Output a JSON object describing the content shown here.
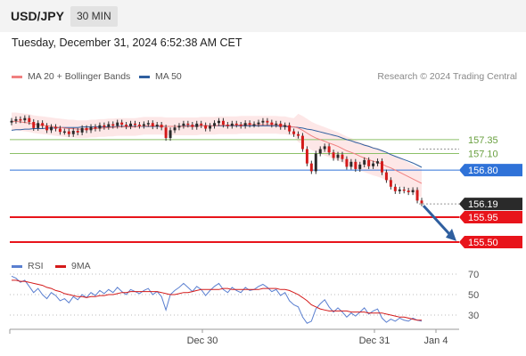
{
  "header": {
    "pair": "USD/JPY",
    "timeframe": "30 MIN",
    "datetime": "Tuesday, December 31, 2024 6:52:38 AM CET"
  },
  "legend": {
    "ma20": "MA 20 + Bollinger Bands",
    "ma50": "MA 50",
    "credit": "Research © 2024 Trading Central"
  },
  "rsi_legend": {
    "rsi": "RSI",
    "ma": "9MA"
  },
  "colors": {
    "ma20": "#f08080",
    "ma50": "#2f5f9f",
    "band": "#fde3e3",
    "up": "#2a2a2a",
    "down": "#d41a1a",
    "resistance": "#8cc068",
    "pivot": "#2f72d8",
    "support": "#e8141b",
    "last": "#2a2a2a",
    "arrow": "#2f5f9f",
    "rsi": "#5a7fd0",
    "rsi_ma": "#d41a1a"
  },
  "chart_data": [
    {
      "type": "candlestick",
      "x_ticks": [
        "Dec 30",
        "Dec 31",
        "Jan 4"
      ],
      "y_range": [
        155.3,
        157.95
      ],
      "levels": [
        {
          "label": "157.35",
          "value": 157.35,
          "kind": "resistance"
        },
        {
          "label": "157.10",
          "value": 157.1,
          "kind": "resistance"
        },
        {
          "label": "156.80",
          "value": 156.8,
          "kind": "pivot"
        },
        {
          "label": "156.19",
          "value": 156.19,
          "kind": "last"
        },
        {
          "label": "155.95",
          "value": 155.95,
          "kind": "support"
        },
        {
          "label": "155.50",
          "value": 155.5,
          "kind": "support"
        }
      ],
      "close": [
        157.69,
        157.72,
        157.7,
        157.74,
        157.67,
        157.56,
        157.65,
        157.6,
        157.52,
        157.58,
        157.55,
        157.49,
        157.5,
        157.45,
        157.51,
        157.48,
        157.56,
        157.52,
        157.58,
        157.55,
        157.61,
        157.58,
        157.63,
        157.6,
        157.66,
        157.62,
        157.59,
        157.64,
        157.62,
        157.6,
        157.63,
        157.65,
        157.59,
        157.62,
        157.57,
        157.38,
        157.52,
        157.57,
        157.6,
        157.64,
        157.62,
        157.58,
        157.64,
        157.61,
        157.55,
        157.6,
        157.65,
        157.69,
        157.62,
        157.6,
        157.64,
        157.62,
        157.6,
        157.65,
        157.62,
        157.63,
        157.66,
        157.69,
        157.66,
        157.62,
        157.64,
        157.58,
        157.61,
        157.5,
        157.45,
        157.42,
        157.18,
        156.92,
        156.78,
        157.1,
        157.18,
        157.23,
        157.12,
        157.02,
        157.08,
        157.0,
        156.86,
        156.95,
        156.82,
        156.9,
        156.98,
        156.87,
        156.92,
        156.96,
        156.76,
        156.62,
        156.5,
        156.42,
        156.45,
        156.43,
        156.4,
        156.44,
        156.25,
        156.2
      ],
      "ma20": [
        157.68,
        157.68,
        157.67,
        157.66,
        157.65,
        157.63,
        157.62,
        157.61,
        157.6,
        157.59,
        157.58,
        157.57,
        157.56,
        157.55,
        157.55,
        157.54,
        157.54,
        157.54,
        157.55,
        157.55,
        157.56,
        157.56,
        157.57,
        157.57,
        157.58,
        157.58,
        157.58,
        157.58,
        157.58,
        157.59,
        157.6,
        157.6,
        157.6,
        157.6,
        157.6,
        157.59,
        157.59,
        157.59,
        157.59,
        157.59,
        157.59,
        157.59,
        157.59,
        157.6,
        157.6,
        157.6,
        157.6,
        157.61,
        157.61,
        157.61,
        157.61,
        157.61,
        157.62,
        157.62,
        157.62,
        157.62,
        157.62,
        157.62,
        157.62,
        157.62,
        157.62,
        157.61,
        157.61,
        157.59,
        157.58,
        157.56,
        157.52,
        157.47,
        157.42,
        157.38,
        157.35,
        157.32,
        157.29,
        157.26,
        157.23,
        157.19,
        157.15,
        157.12,
        157.09,
        157.05,
        157.02,
        156.99,
        156.96,
        156.94,
        156.91,
        156.87,
        156.84,
        156.8,
        156.76,
        156.72,
        156.68,
        156.64,
        156.6,
        156.56
      ],
      "ma50": [
        157.52,
        157.53,
        157.53,
        157.54,
        157.54,
        157.55,
        157.55,
        157.55,
        157.56,
        157.56,
        157.56,
        157.57,
        157.57,
        157.57,
        157.57,
        157.57,
        157.58,
        157.58,
        157.58,
        157.58,
        157.58,
        157.58,
        157.58,
        157.58,
        157.59,
        157.59,
        157.59,
        157.59,
        157.59,
        157.59,
        157.59,
        157.59,
        157.59,
        157.59,
        157.59,
        157.59,
        157.59,
        157.59,
        157.59,
        157.6,
        157.6,
        157.6,
        157.6,
        157.6,
        157.6,
        157.6,
        157.6,
        157.6,
        157.6,
        157.6,
        157.6,
        157.6,
        157.6,
        157.6,
        157.6,
        157.6,
        157.6,
        157.6,
        157.6,
        157.6,
        157.6,
        157.59,
        157.59,
        157.58,
        157.58,
        157.57,
        157.56,
        157.54,
        157.53,
        157.51,
        157.49,
        157.47,
        157.45,
        157.43,
        157.41,
        157.38,
        157.35,
        157.33,
        157.3,
        157.28,
        157.25,
        157.23,
        157.2,
        157.18,
        157.15,
        157.12,
        157.08,
        157.05,
        157.02,
        156.99,
        156.96,
        156.93,
        156.89,
        156.85
      ],
      "band_width": 0.16,
      "projection": {
        "from": 156.19,
        "to": 155.55
      }
    },
    {
      "type": "line",
      "name_rsi": "RSI",
      "name_ma": "9MA",
      "y_ticks": [
        70,
        50,
        30
      ],
      "y_range": [
        20,
        80
      ],
      "rsi": [
        68,
        66,
        62,
        64,
        58,
        52,
        56,
        50,
        46,
        52,
        49,
        44,
        46,
        42,
        48,
        45,
        50,
        47,
        52,
        49,
        54,
        51,
        55,
        52,
        57,
        53,
        50,
        55,
        53,
        51,
        54,
        56,
        50,
        53,
        48,
        35,
        50,
        54,
        57,
        61,
        57,
        53,
        58,
        55,
        49,
        54,
        58,
        61,
        55,
        52,
        57,
        54,
        52,
        57,
        54,
        55,
        58,
        60,
        57,
        53,
        55,
        49,
        52,
        44,
        40,
        38,
        28,
        22,
        24,
        36,
        41,
        45,
        38,
        33,
        37,
        33,
        28,
        32,
        29,
        33,
        37,
        31,
        34,
        36,
        27,
        23,
        26,
        24,
        27,
        25,
        24,
        27,
        25,
        24
      ],
      "rsi_ma": [
        64,
        64,
        63,
        63,
        62,
        61,
        60,
        59,
        57,
        56,
        54,
        53,
        51,
        50,
        49,
        48,
        48,
        47,
        48,
        48,
        49,
        49,
        50,
        50,
        51,
        52,
        52,
        53,
        53,
        53,
        53,
        53,
        53,
        53,
        52,
        51,
        50,
        50,
        51,
        52,
        52,
        53,
        54,
        55,
        55,
        55,
        55,
        55,
        56,
        56,
        55,
        55,
        55,
        55,
        55,
        55,
        55,
        56,
        56,
        56,
        56,
        55,
        55,
        54,
        52,
        50,
        47,
        44,
        40,
        38,
        36,
        35,
        34,
        34,
        34,
        34,
        34,
        33,
        33,
        33,
        33,
        32,
        32,
        32,
        32,
        31,
        30,
        29,
        28,
        28,
        27,
        26,
        25,
        25
      ]
    }
  ]
}
